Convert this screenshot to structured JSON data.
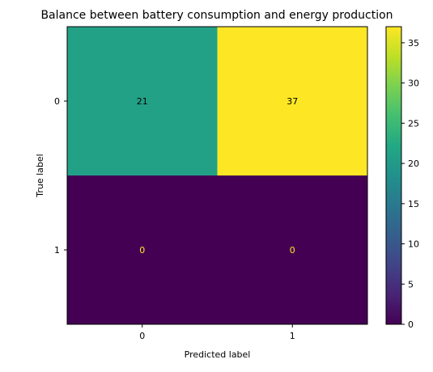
{
  "chart_data": {
    "type": "heatmap",
    "title": "Balance between battery consumption and energy production",
    "xlabel": "Predicted label",
    "ylabel": "True label",
    "x_categories": [
      "0",
      "1"
    ],
    "y_categories": [
      "0",
      "1"
    ],
    "values": [
      [
        21,
        37
      ],
      [
        0,
        0
      ]
    ],
    "colorbar": {
      "colormap": "viridis",
      "range": [
        0,
        37
      ],
      "ticks": [
        0,
        5,
        10,
        15,
        20,
        25,
        30,
        35
      ]
    },
    "label_colors": {
      "dark_cell": "#000000",
      "light_cell": "#fde725"
    }
  }
}
